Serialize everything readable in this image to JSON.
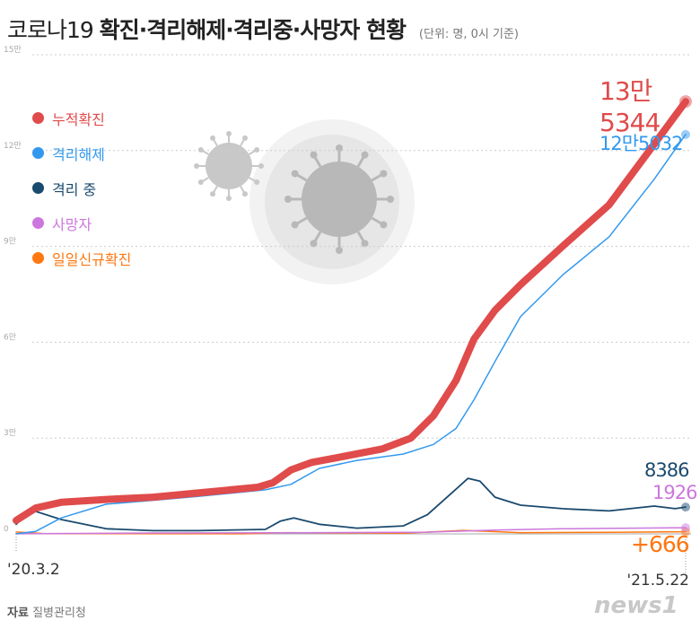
{
  "title": {
    "light": "코로나19",
    "bold": "확진·격리해제·격리중·사망자 현황",
    "unit": "(단위: 명, 0시 기준)"
  },
  "source": {
    "label": "자료",
    "value": "질병관리청"
  },
  "logo": "news1",
  "chart_data": {
    "type": "line",
    "title": "코로나19 확진·격리해제·격리중·사망자 현황",
    "ylim": [
      0,
      150000
    ],
    "yticks": [
      0,
      30000,
      60000,
      90000,
      120000,
      150000
    ],
    "ytick_labels": [
      "0",
      "3만",
      "6만",
      "9만",
      "12만",
      "15만"
    ],
    "xlim": [
      "2020-03-02",
      "2021-05-22"
    ],
    "xtick_labels": [
      "'20.3.2",
      "'21.5.22"
    ],
    "grid": true,
    "legend_position": "top-left",
    "series": [
      {
        "name": "누적확진",
        "color": "#e04b4b",
        "end_label": "13만5344",
        "points": [
          [
            "2020-03-02",
            4200
          ],
          [
            "2020-03-15",
            8100
          ],
          [
            "2020-04-01",
            9900
          ],
          [
            "2020-05-01",
            10800
          ],
          [
            "2020-06-01",
            11500
          ],
          [
            "2020-07-01",
            12800
          ],
          [
            "2020-08-10",
            14600
          ],
          [
            "2020-08-20",
            16000
          ],
          [
            "2020-09-01",
            20000
          ],
          [
            "2020-09-15",
            22400
          ],
          [
            "2020-10-01",
            23800
          ],
          [
            "2020-11-01",
            26600
          ],
          [
            "2020-11-20",
            30000
          ],
          [
            "2020-12-05",
            37000
          ],
          [
            "2020-12-20",
            48000
          ],
          [
            "2021-01-01",
            61000
          ],
          [
            "2021-01-15",
            70000
          ],
          [
            "2021-02-01",
            78000
          ],
          [
            "2021-03-01",
            90000
          ],
          [
            "2021-04-01",
            103000
          ],
          [
            "2021-05-01",
            122000
          ],
          [
            "2021-05-22",
            135344
          ]
        ]
      },
      {
        "name": "격리해제",
        "color": "#3399ee",
        "end_label": "12만5032",
        "points": [
          [
            "2020-03-02",
            30
          ],
          [
            "2020-03-15",
            800
          ],
          [
            "2020-04-01",
            5000
          ],
          [
            "2020-05-01",
            9300
          ],
          [
            "2020-06-01",
            10500
          ],
          [
            "2020-07-01",
            11700
          ],
          [
            "2020-08-15",
            13800
          ],
          [
            "2020-09-01",
            15500
          ],
          [
            "2020-09-20",
            20500
          ],
          [
            "2020-10-15",
            23000
          ],
          [
            "2020-11-15",
            25000
          ],
          [
            "2020-12-05",
            28000
          ],
          [
            "2020-12-20",
            33000
          ],
          [
            "2021-01-01",
            42000
          ],
          [
            "2021-01-15",
            54000
          ],
          [
            "2021-02-01",
            68000
          ],
          [
            "2021-03-01",
            81000
          ],
          [
            "2021-04-01",
            93000
          ],
          [
            "2021-05-01",
            111000
          ],
          [
            "2021-05-22",
            125032
          ]
        ]
      },
      {
        "name": "격리 중",
        "color": "#1a4a6e",
        "end_label": "8386",
        "points": [
          [
            "2020-03-02",
            3000
          ],
          [
            "2020-03-12",
            7500
          ],
          [
            "2020-04-01",
            4500
          ],
          [
            "2020-05-01",
            1600
          ],
          [
            "2020-06-01",
            1000
          ],
          [
            "2020-07-01",
            1000
          ],
          [
            "2020-08-15",
            1400
          ],
          [
            "2020-08-25",
            4000
          ],
          [
            "2020-09-03",
            5000
          ],
          [
            "2020-09-20",
            3000
          ],
          [
            "2020-10-15",
            1800
          ],
          [
            "2020-11-15",
            2500
          ],
          [
            "2020-12-01",
            6000
          ],
          [
            "2020-12-20",
            14000
          ],
          [
            "2020-12-28",
            17400
          ],
          [
            "2021-01-05",
            16500
          ],
          [
            "2021-01-15",
            11500
          ],
          [
            "2021-02-01",
            9000
          ],
          [
            "2021-03-01",
            7900
          ],
          [
            "2021-04-01",
            7200
          ],
          [
            "2021-05-01",
            8700
          ],
          [
            "2021-05-15",
            7900
          ],
          [
            "2021-05-22",
            8386
          ]
        ]
      },
      {
        "name": "사망자",
        "color": "#cc77dd",
        "end_label": "1926",
        "points": [
          [
            "2020-03-02",
            28
          ],
          [
            "2020-06-01",
            270
          ],
          [
            "2020-09-01",
            330
          ],
          [
            "2020-12-01",
            520
          ],
          [
            "2021-01-15",
            1200
          ],
          [
            "2021-03-01",
            1600
          ],
          [
            "2021-05-22",
            1926
          ]
        ]
      },
      {
        "name": "일일신규확진",
        "color": "#ff7711",
        "end_label": "+666",
        "points": [
          [
            "2020-03-02",
            600
          ],
          [
            "2020-03-20",
            100
          ],
          [
            "2020-08-01",
            40
          ],
          [
            "2020-08-28",
            400
          ],
          [
            "2020-11-15",
            200
          ],
          [
            "2020-12-25",
            1100
          ],
          [
            "2021-02-01",
            400
          ],
          [
            "2021-04-01",
            500
          ],
          [
            "2021-05-22",
            666
          ]
        ]
      }
    ]
  }
}
